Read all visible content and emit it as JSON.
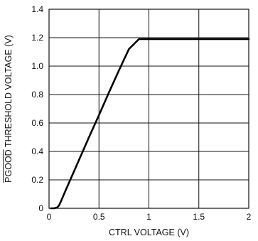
{
  "chart_data": {
    "type": "line",
    "title": "",
    "xlabel": "CTRL VOLTAGE (V)",
    "ylabel_overlined": "PGOOD",
    "ylabel_rest": " THRESHOLD VOLTAGE (V)",
    "xlim": [
      0,
      2
    ],
    "ylim": [
      0,
      1.4
    ],
    "grid": true,
    "x_ticks": [
      {
        "value": 0,
        "label": "0"
      },
      {
        "value": 0.5,
        "label": "0.5"
      },
      {
        "value": 1,
        "label": "1"
      },
      {
        "value": 1.5,
        "label": "1.5"
      },
      {
        "value": 2,
        "label": "2"
      }
    ],
    "y_ticks": [
      {
        "value": 0,
        "label": "0"
      },
      {
        "value": 0.2,
        "label": "0.2"
      },
      {
        "value": 0.4,
        "label": "0.4"
      },
      {
        "value": 0.6,
        "label": "0.6"
      },
      {
        "value": 0.8,
        "label": "0.8"
      },
      {
        "value": 1.0,
        "label": "1.0"
      },
      {
        "value": 1.2,
        "label": "1.2"
      },
      {
        "value": 1.4,
        "label": "1.4"
      }
    ],
    "series": [
      {
        "x": [
          0.02,
          0.05,
          0.08,
          0.1,
          0.12,
          0.15,
          0.2,
          0.3,
          0.4,
          0.5,
          0.6,
          0.7,
          0.8,
          0.9,
          1.0,
          1.1,
          1.2,
          1.25,
          1.28,
          1.3,
          1.33,
          1.36,
          1.4,
          1.5,
          1.6,
          1.8,
          2.0
        ],
        "y": [
          0.0,
          0.0,
          0.005,
          0.02,
          0.05,
          0.1,
          0.18,
          0.34,
          0.5,
          0.655,
          0.815,
          0.97,
          1.12,
          1.19,
          1.19,
          1.19,
          1.19,
          1.19,
          1.19,
          1.19,
          1.19,
          1.19,
          1.19,
          1.19,
          1.19,
          1.19,
          1.19
        ]
      }
    ]
  }
}
